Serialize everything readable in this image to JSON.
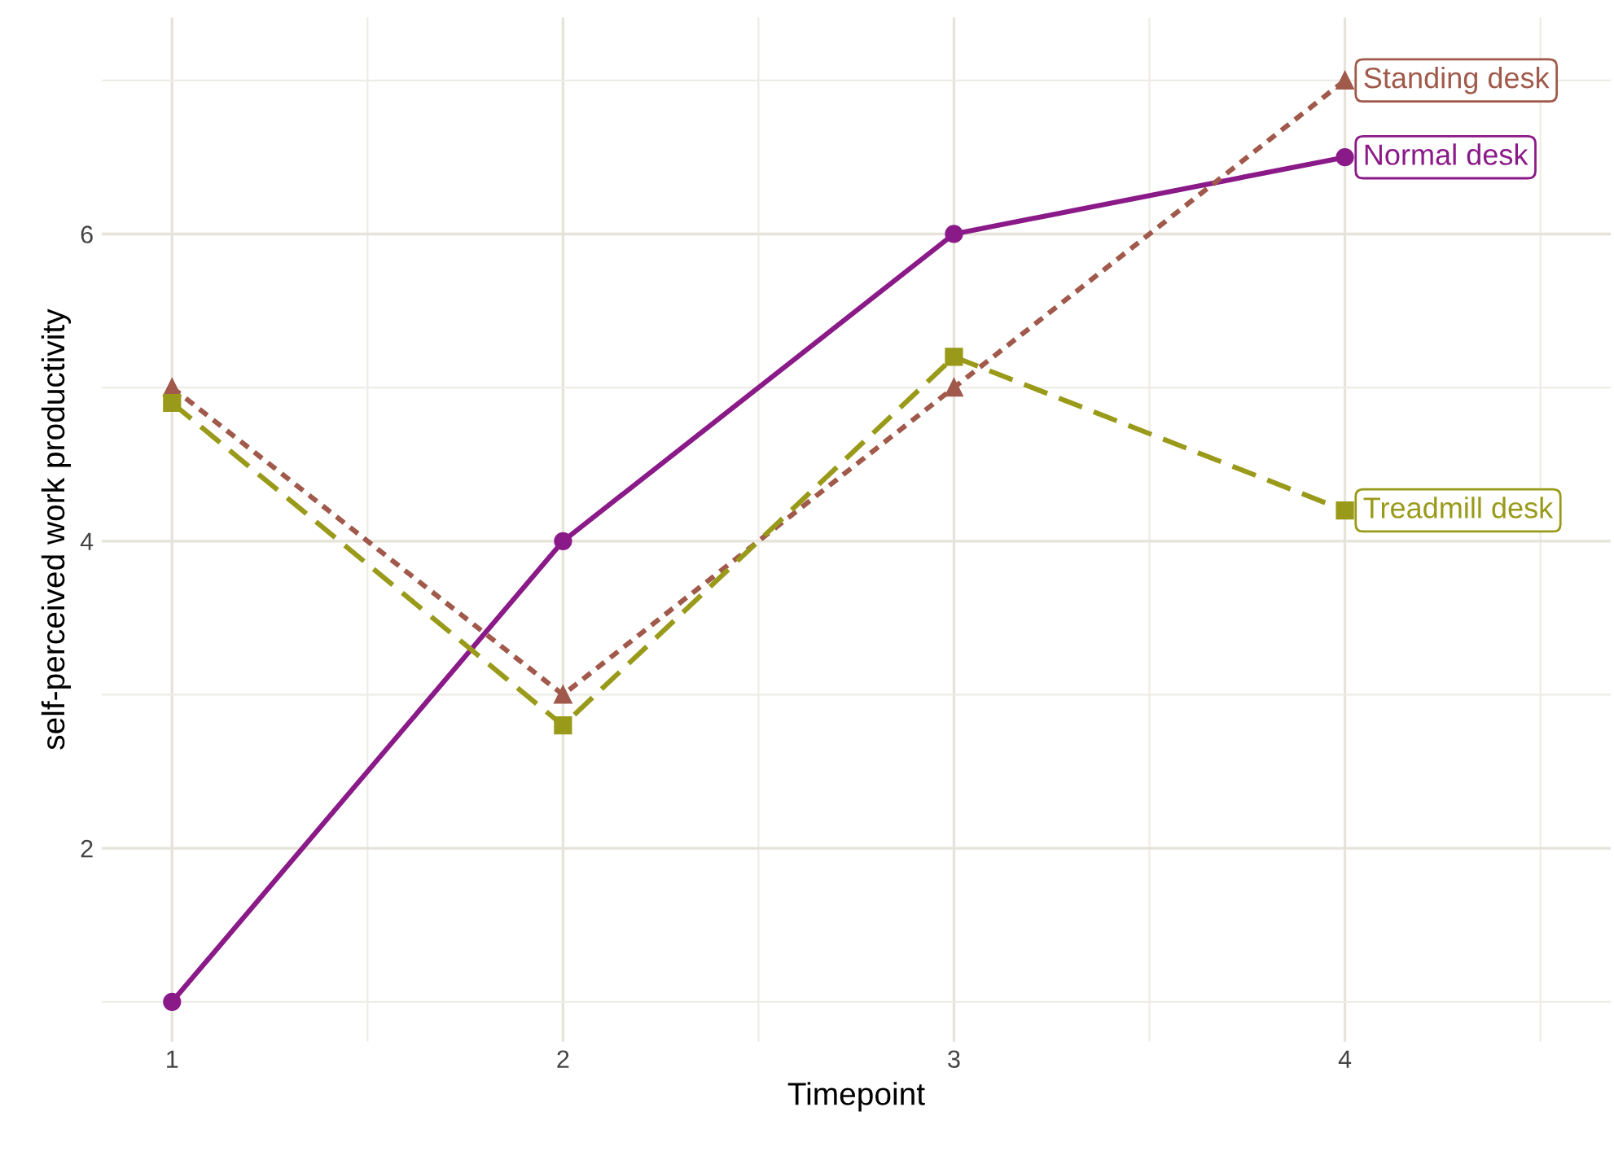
{
  "chart_data": {
    "type": "line",
    "xlabel": "Timepoint",
    "ylabel": "self-perceived work productivity",
    "x": [
      1,
      2,
      3,
      4
    ],
    "series": [
      {
        "name": "Normal desk",
        "color": "#8b1a89",
        "values": [
          1.0,
          4.0,
          6.0,
          6.5
        ],
        "marker": "circle",
        "line_style": "solid"
      },
      {
        "name": "Standing desk",
        "color": "#a0594a",
        "values": [
          5.0,
          3.0,
          5.0,
          7.0
        ],
        "marker": "triangle",
        "line_style": "dotted"
      },
      {
        "name": "Treadmill desk",
        "color": "#9a9a1a",
        "values": [
          4.9,
          2.8,
          5.2,
          4.2
        ],
        "marker": "square",
        "line_style": "dashed"
      }
    ],
    "xlim": [
      0.82,
      4.68
    ],
    "ylim": [
      0.74,
      7.41
    ],
    "xticks": [
      1,
      2,
      3,
      4
    ],
    "yticks": [
      2,
      4,
      6
    ],
    "grid": true,
    "legend": false
  }
}
